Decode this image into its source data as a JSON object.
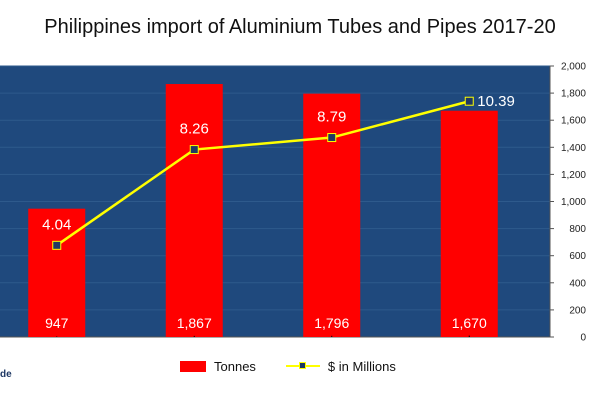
{
  "chart_data": {
    "type": "bar",
    "title": "Philippines import of Aluminium Tubes and Pipes 2017-20",
    "categories": [
      "",
      "",
      "",
      ""
    ],
    "series": [
      {
        "name": "Tonnes",
        "type": "bar",
        "axis": "left",
        "values": [
          947,
          1867,
          1796,
          1670
        ],
        "value_labels": [
          "947",
          "1,867",
          "1,796",
          "1,670"
        ],
        "color": "#ff0000"
      },
      {
        "name": "$ in Millions",
        "type": "line",
        "axis": "right",
        "values": [
          4.04,
          8.26,
          8.79,
          10.39
        ],
        "value_labels": [
          "4.04",
          "8.26",
          "8.79",
          "10.39"
        ],
        "color": "#ffff00",
        "marker_color": "#1f3864"
      }
    ],
    "left_axis": {
      "range": [
        0,
        2000
      ]
    },
    "right_axis": {
      "range": [
        0,
        2000
      ],
      "ticks": [
        0,
        200,
        400,
        600,
        800,
        1000,
        1200,
        1400,
        1600,
        1800,
        2000
      ],
      "tick_labels": [
        "0",
        "200",
        "400",
        "600",
        "800",
        "1,000",
        "1,200",
        "1,400",
        "1,600",
        "1,800",
        "2,000"
      ]
    },
    "plot_background": "#1f497d",
    "grid": true,
    "legend_position": "bottom"
  },
  "logo_text": "de"
}
